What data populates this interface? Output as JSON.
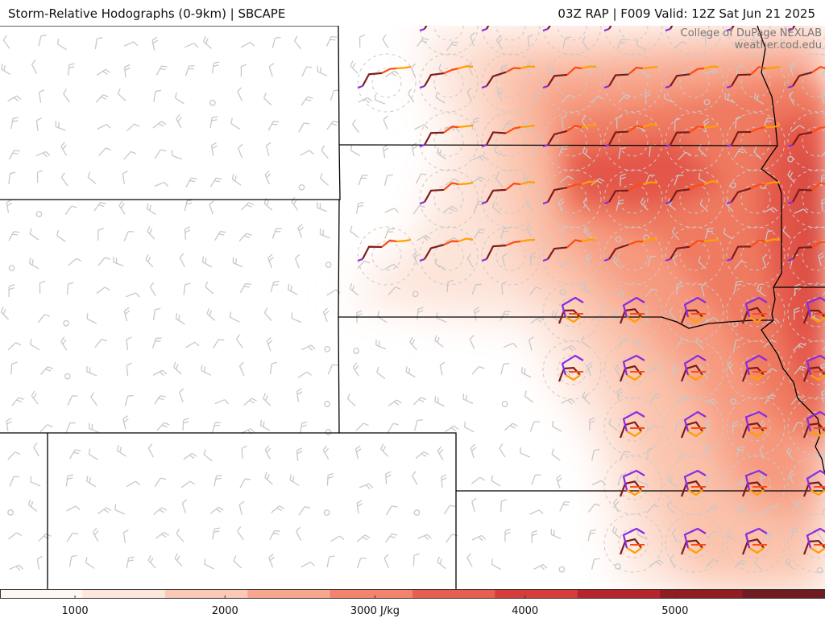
{
  "header": {
    "title_left": "Storm-Relative Hodographs (0-9km) | SBCAPE",
    "title_right": "03Z RAP | F009 Valid: 12Z Sat Jun 21 2025"
  },
  "credit": {
    "line1": "College of DuPage NEXLAB",
    "line2": "weather.cod.edu"
  },
  "colorbar": {
    "ticks": [
      "1000",
      "2000",
      "3000 J/kg",
      "4000",
      "5000"
    ],
    "tick_values": [
      1000,
      2000,
      3000,
      4000,
      5000
    ],
    "range": [
      500,
      6000
    ],
    "colors": [
      "#fff7f2",
      "#fde6dc",
      "#fbc9b5",
      "#f8a78f",
      "#f2836d",
      "#e85e50",
      "#d63d3a",
      "#b8242b",
      "#8f1d22",
      "#6e1b22"
    ]
  },
  "map_colors": {
    "background": "#ffffff",
    "borders": "#000000",
    "barbs": "#c8c8c8",
    "hodo_low": "#7b1c1c",
    "hodo_mid": "#ff4a10",
    "hodo_upper": "#ff9e00",
    "hodo_top": "#8a2be2"
  },
  "icons": {
    "wind_barb": "wind-barb-icon",
    "calm_wind": "calm-circle-icon",
    "hodograph": "hodograph-icon"
  }
}
